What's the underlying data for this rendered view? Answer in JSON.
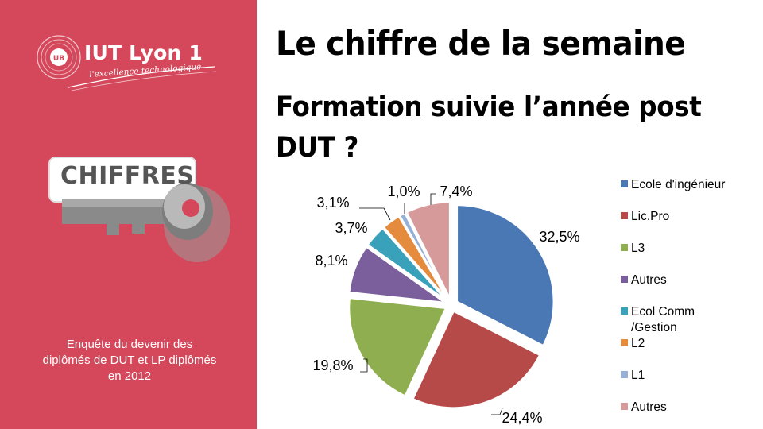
{
  "branding": {
    "logo_name": "IUT Lyon 1",
    "logo_tagline": "l'excellence technologique",
    "key_word": "CHIFFRES"
  },
  "survey_note": "Enquête du devenir des diplômés de DUT et LP diplômés en 2012",
  "headline": "Le chiffre de la semaine",
  "colors": {
    "sidebar": "#d5475a",
    "ecole_ingenieur": "#4a78b4",
    "lic_pro": "#b64a48",
    "l3": "#8fae4f",
    "autres_1": "#7a5f9c",
    "ecol_comm": "#3aa1bb",
    "l2": "#e58b3e",
    "l1": "#97b0d6",
    "autres_2": "#d69a9a"
  },
  "chart_data": {
    "type": "pie",
    "title": "Formation suivie l’année post DUT ?",
    "unit": "%",
    "slices": [
      {
        "label": "Ecole d'ingénieur",
        "value": 32.5,
        "display": "32,5%",
        "color": "#4a78b4"
      },
      {
        "label": "Lic.Pro",
        "value": 24.4,
        "display": "24,4%",
        "color": "#b64a48"
      },
      {
        "label": "L3",
        "value": 19.8,
        "display": "19,8%",
        "color": "#8fae4f"
      },
      {
        "label": "Autres",
        "value": 8.1,
        "display": "8,1%",
        "color": "#7a5f9c"
      },
      {
        "label": "Ecol Comm /Gestion",
        "value": 3.7,
        "display": "3,7%",
        "color": "#3aa1bb"
      },
      {
        "label": "L2",
        "value": 3.1,
        "display": "3,1%",
        "color": "#e58b3e"
      },
      {
        "label": "L1",
        "value": 1.0,
        "display": "1,0%",
        "color": "#97b0d6"
      },
      {
        "label": "Autres",
        "value": 7.4,
        "display": "7,4%",
        "color": "#d69a9a"
      }
    ],
    "legend_position": "right",
    "exploded": true
  }
}
